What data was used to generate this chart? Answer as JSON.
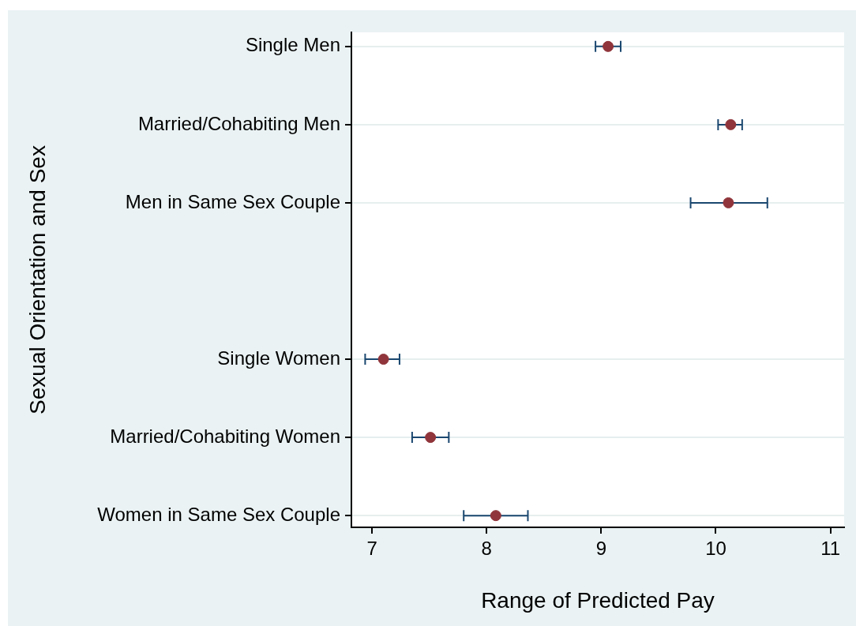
{
  "chart_data": {
    "type": "scatter",
    "orientation": "horizontal",
    "xlabel": "Range of Predicted Pay",
    "ylabel": "Sexual Orientation and Sex",
    "categories": [
      "Single Men",
      "Married/Cohabiting Men",
      "Men in Same Sex Couple",
      null,
      "Single Women",
      "Married/Cohabiting Women",
      "Women in Same Sex Couple"
    ],
    "values": [
      9.06,
      10.13,
      10.11,
      null,
      7.1,
      7.51,
      8.08
    ],
    "errors": [
      [
        8.95,
        9.17
      ],
      [
        10.02,
        10.23
      ],
      [
        9.78,
        10.45
      ],
      null,
      [
        6.94,
        7.24
      ],
      [
        7.35,
        7.67
      ],
      [
        7.8,
        8.36
      ]
    ],
    "color": "#90353b",
    "marker": "circle",
    "grid": "y",
    "xlim": [
      6.82,
      11.12
    ],
    "xticks": [
      7,
      8,
      9,
      10,
      11
    ]
  }
}
